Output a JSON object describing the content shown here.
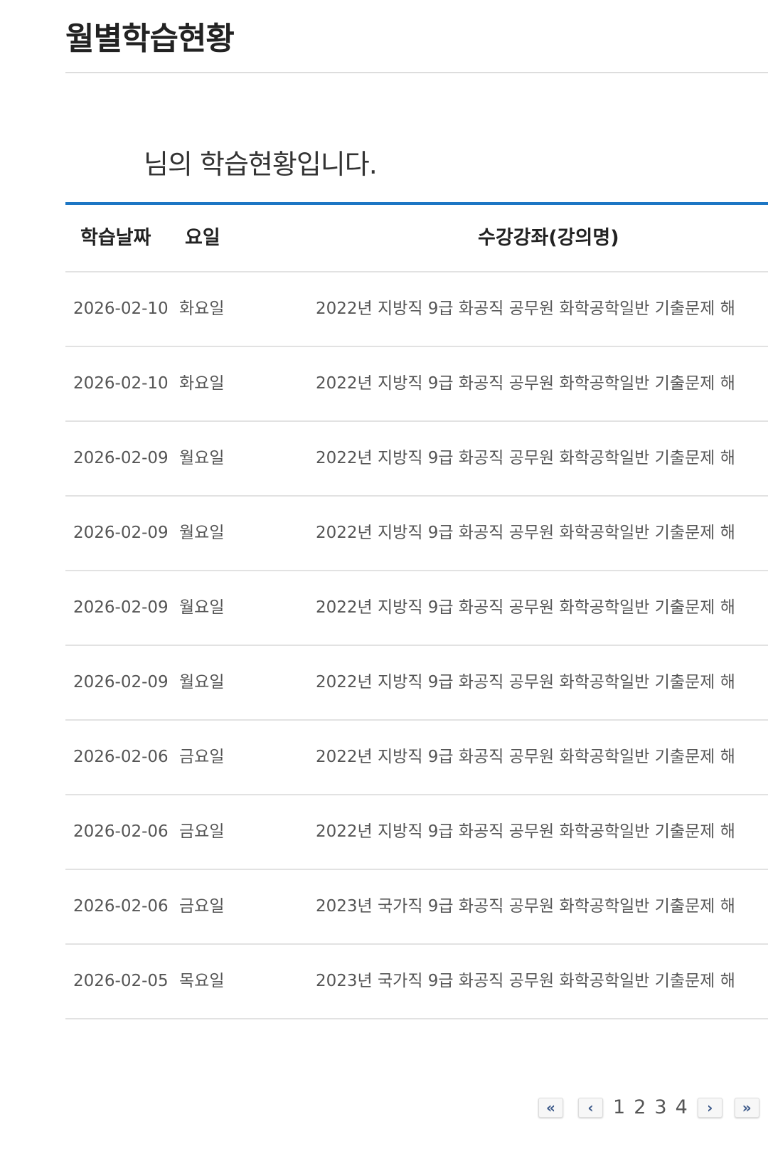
{
  "page": {
    "title": "월별학습현황",
    "greeting": "님의 학습현황입니다."
  },
  "colors": {
    "accent": "#1d76c4"
  },
  "table": {
    "headers": {
      "date": "학습날짜",
      "day": "요일",
      "course": "수강강좌(강의명)"
    },
    "rows": [
      {
        "date": "2026-02-10",
        "day": "화요일",
        "course": "2022년 지방직 9급 화공직 공무원 화학공학일반 기출문제 해"
      },
      {
        "date": "2026-02-10",
        "day": "화요일",
        "course": "2022년 지방직 9급 화공직 공무원 화학공학일반 기출문제 해"
      },
      {
        "date": "2026-02-09",
        "day": "월요일",
        "course": "2022년 지방직 9급 화공직 공무원 화학공학일반 기출문제 해"
      },
      {
        "date": "2026-02-09",
        "day": "월요일",
        "course": "2022년 지방직 9급 화공직 공무원 화학공학일반 기출문제 해"
      },
      {
        "date": "2026-02-09",
        "day": "월요일",
        "course": "2022년 지방직 9급 화공직 공무원 화학공학일반 기출문제 해"
      },
      {
        "date": "2026-02-09",
        "day": "월요일",
        "course": "2022년 지방직 9급 화공직 공무원 화학공학일반 기출문제 해"
      },
      {
        "date": "2026-02-06",
        "day": "금요일",
        "course": "2022년 지방직 9급 화공직 공무원 화학공학일반 기출문제 해"
      },
      {
        "date": "2026-02-06",
        "day": "금요일",
        "course": "2022년 지방직 9급 화공직 공무원 화학공학일반 기출문제 해"
      },
      {
        "date": "2026-02-06",
        "day": "금요일",
        "course": "2023년 국가직 9급 화공직 공무원 화학공학일반 기출문제 해"
      },
      {
        "date": "2026-02-05",
        "day": "목요일",
        "course": "2023년 국가직 9급 화공직 공무원 화학공학일반 기출문제 해"
      }
    ]
  },
  "pagination": {
    "first_icon": "double-chevron-left-icon",
    "first_glyph": "«",
    "prev_icon": "chevron-left-icon",
    "prev_glyph": "‹",
    "pages": [
      "1",
      "2",
      "3",
      "4"
    ],
    "next_icon": "chevron-right-icon",
    "next_glyph": "›",
    "last_icon": "double-chevron-right-icon",
    "last_glyph": "»"
  }
}
